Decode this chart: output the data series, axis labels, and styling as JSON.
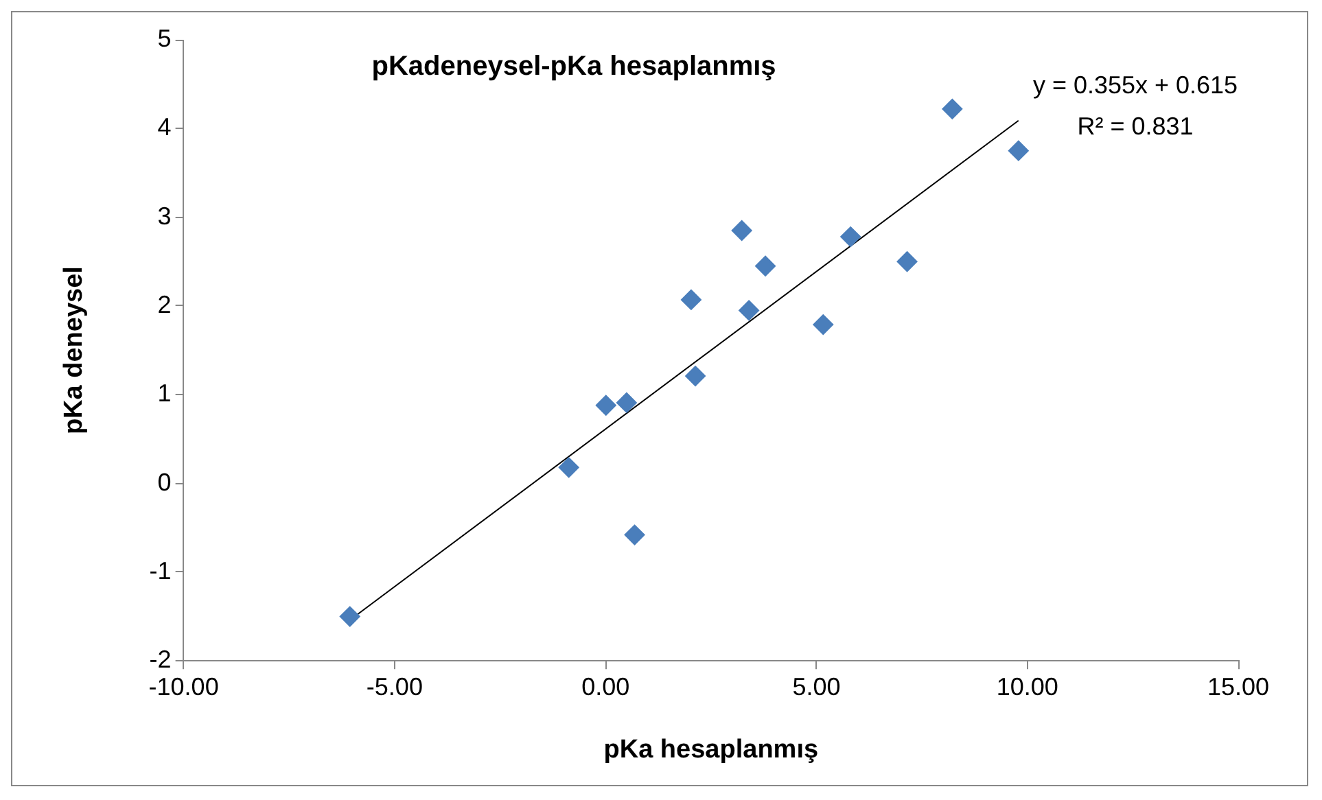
{
  "chart_data": {
    "type": "scatter",
    "title": "pKadeneysel-pKa hesaplanmış",
    "xlabel": "pKa hesaplanmış",
    "ylabel": "pKa deneysel",
    "marker": "diamond",
    "legend": false,
    "grid": false,
    "xlim": [
      -10,
      15
    ],
    "xticks": [
      {
        "value": -10,
        "label": "-10.00"
      },
      {
        "value": -5,
        "label": "-5.00"
      },
      {
        "value": 0,
        "label": "0.00"
      },
      {
        "value": 5,
        "label": "5.00"
      },
      {
        "value": 10,
        "label": "10.00"
      },
      {
        "value": 15,
        "label": "15.00"
      }
    ],
    "ylim": [
      -2,
      5
    ],
    "yticks": [
      -2,
      -1,
      0,
      1,
      2,
      3,
      4,
      5
    ],
    "annotations": [
      "y = 0.355x + 0.615",
      "R² = 0.831"
    ],
    "series": [
      {
        "type": "scatter",
        "color": "#4a7ebb",
        "x": [
          -6.06,
          -0.87,
          0.01,
          0.5,
          0.69,
          2.03,
          2.13,
          3.23,
          3.4,
          3.79,
          5.16,
          5.81,
          7.15,
          8.22,
          9.79
        ],
        "values": [
          -1.5,
          0.18,
          0.88,
          0.91,
          -0.58,
          2.07,
          1.21,
          2.85,
          1.95,
          2.45,
          1.79,
          2.78,
          2.5,
          4.22,
          3.75
        ]
      },
      {
        "type": "line",
        "marker": "none",
        "color": "#000000",
        "x": [
          -6.06,
          9.79
        ],
        "values": [
          -1.54,
          4.09
        ]
      }
    ]
  }
}
